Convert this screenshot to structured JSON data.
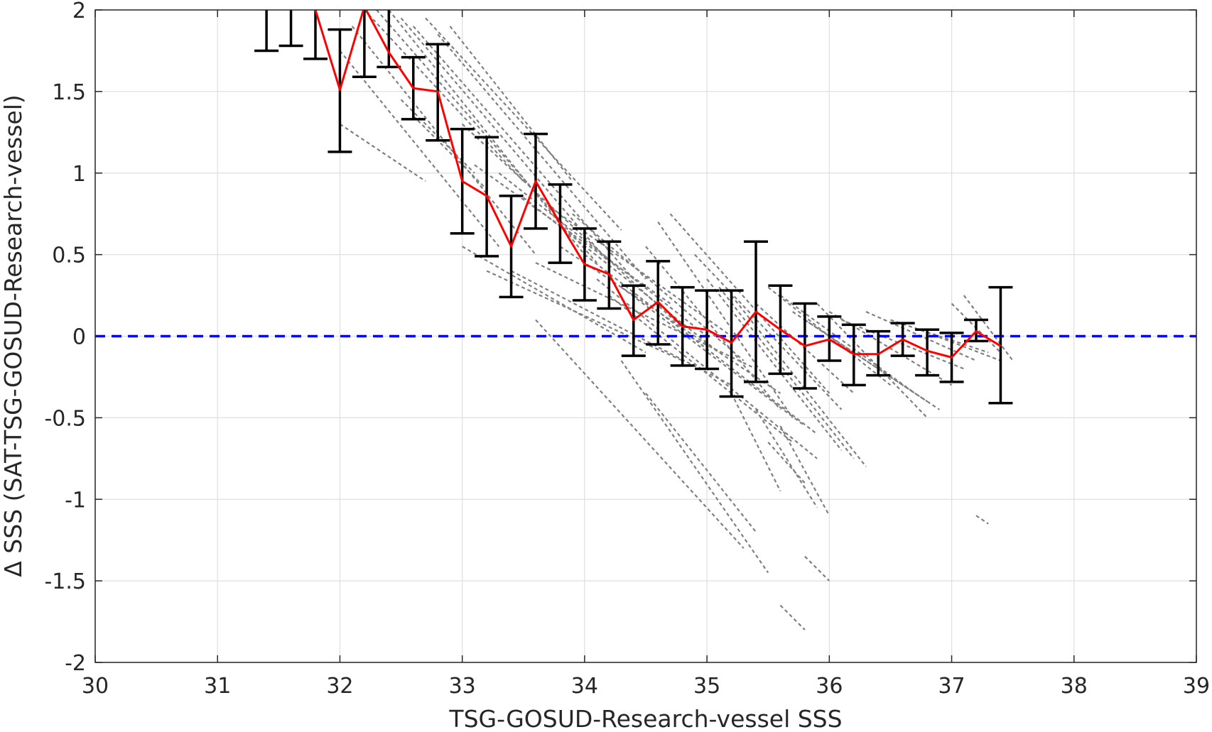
{
  "chart_data": {
    "type": "line",
    "title": "",
    "xlabel": "TSG-GOSUD-Research-vessel SSS",
    "ylabel": "Δ SSS (SAT-TSG-GOSUD-Research-vessel)",
    "xlim": [
      30,
      39
    ],
    "ylim": [
      -2,
      2
    ],
    "x_ticks": [
      30,
      31,
      32,
      33,
      34,
      35,
      36,
      37,
      38,
      39
    ],
    "x_tick_labels": [
      "30",
      "31",
      "32",
      "33",
      "34",
      "35",
      "36",
      "37",
      "38",
      "39"
    ],
    "y_ticks": [
      2,
      1.5,
      1,
      0.5,
      0,
      -0.5,
      -1,
      -1.5,
      -2
    ],
    "y_tick_labels": [
      "2",
      "1.5",
      "1",
      "0.5",
      "0",
      "-0.5",
      "-1",
      "-1.5",
      "-2"
    ],
    "grid": true,
    "zero_line": {
      "y": 0,
      "color": "#0000ff",
      "style": "dashed"
    },
    "mean": {
      "color": "#ff0000",
      "x": [
        31.8,
        32.0,
        32.2,
        32.4,
        32.6,
        32.8,
        33.0,
        33.2,
        33.4,
        33.6,
        33.8,
        34.0,
        34.2,
        34.4,
        34.6,
        34.8,
        35.0,
        35.2,
        35.4,
        35.6,
        35.8,
        36.0,
        36.2,
        36.4,
        36.6,
        36.8,
        37.0,
        37.2,
        37.4
      ],
      "y": [
        2.0,
        1.51,
        2.02,
        1.74,
        1.52,
        1.5,
        0.95,
        0.86,
        0.55,
        0.95,
        0.69,
        0.44,
        0.38,
        0.1,
        0.21,
        0.06,
        0.04,
        -0.04,
        0.15,
        0.04,
        -0.06,
        -0.02,
        -0.11,
        -0.11,
        -0.02,
        -0.09,
        -0.13,
        0.03,
        -0.06
      ]
    },
    "error_bars": {
      "color": "#000000",
      "x": [
        31.4,
        31.6,
        31.8,
        32.0,
        32.2,
        32.4,
        32.6,
        32.8,
        33.0,
        33.2,
        33.4,
        33.6,
        33.8,
        34.0,
        34.2,
        34.4,
        34.6,
        34.8,
        35.0,
        35.2,
        35.4,
        35.6,
        35.8,
        36.0,
        36.2,
        36.4,
        36.6,
        36.8,
        37.0,
        37.2,
        37.4
      ],
      "lower": [
        1.75,
        1.78,
        1.7,
        1.13,
        1.59,
        1.65,
        1.33,
        1.2,
        0.63,
        0.49,
        0.24,
        0.66,
        0.45,
        0.22,
        0.17,
        -0.12,
        -0.05,
        -0.18,
        -0.2,
        -0.37,
        -0.28,
        -0.23,
        -0.32,
        -0.15,
        -0.3,
        -0.24,
        -0.12,
        -0.24,
        -0.28,
        -0.03,
        -0.41
      ],
      "upper": [
        2.0,
        2.0,
        2.0,
        1.88,
        2.0,
        2.0,
        1.71,
        1.79,
        1.27,
        1.22,
        0.86,
        1.24,
        0.93,
        0.66,
        0.58,
        0.31,
        0.46,
        0.3,
        0.28,
        0.28,
        0.58,
        0.31,
        0.2,
        0.12,
        0.07,
        0.03,
        0.08,
        0.04,
        0.02,
        0.1,
        0.3
      ]
    },
    "scatter_segments": {
      "color": "#808080",
      "style": "dashed",
      "description_series": [
        {
          "x": [
            32.0,
            33.3
          ],
          "y": [
            1.75,
            0.55
          ]
        },
        {
          "x": [
            32.1,
            33.6
          ],
          "y": [
            1.9,
            0.5
          ]
        },
        {
          "x": [
            32.2,
            33.5
          ],
          "y": [
            2.0,
            0.95
          ]
        },
        {
          "x": [
            32.3,
            34.1
          ],
          "y": [
            2.0,
            0.45
          ]
        },
        {
          "x": [
            32.4,
            34.0
          ],
          "y": [
            2.0,
            0.5
          ]
        },
        {
          "x": [
            32.5,
            34.2
          ],
          "y": [
            1.95,
            0.45
          ]
        },
        {
          "x": [
            32.6,
            34.4
          ],
          "y": [
            1.9,
            0.35
          ]
        },
        {
          "x": [
            32.7,
            34.3
          ],
          "y": [
            1.95,
            0.65
          ]
        },
        {
          "x": [
            32.8,
            34.5
          ],
          "y": [
            1.85,
            0.35
          ]
        },
        {
          "x": [
            32.9,
            33.9
          ],
          "y": [
            1.9,
            0.95
          ]
        },
        {
          "x": [
            32.5,
            33.1
          ],
          "y": [
            1.45,
            1.0
          ]
        },
        {
          "x": [
            32.6,
            33.2
          ],
          "y": [
            1.35,
            0.9
          ]
        },
        {
          "x": [
            32.0,
            32.7
          ],
          "y": [
            1.3,
            0.95
          ]
        },
        {
          "x": [
            33.0,
            34.8
          ],
          "y": [
            1.3,
            0.05
          ]
        },
        {
          "x": [
            33.1,
            34.7
          ],
          "y": [
            1.05,
            0.2
          ]
        },
        {
          "x": [
            33.3,
            35.0
          ],
          "y": [
            1.0,
            0.0
          ]
        },
        {
          "x": [
            33.5,
            35.1
          ],
          "y": [
            0.85,
            -0.1
          ]
        },
        {
          "x": [
            33.7,
            35.2
          ],
          "y": [
            0.8,
            0.0
          ]
        },
        {
          "x": [
            33.9,
            35.3
          ],
          "y": [
            0.75,
            -0.15
          ]
        },
        {
          "x": [
            33.8,
            35.6
          ],
          "y": [
            0.55,
            -0.35
          ]
        },
        {
          "x": [
            33.6,
            35.4
          ],
          "y": [
            0.45,
            -0.2
          ]
        },
        {
          "x": [
            33.4,
            35.2
          ],
          "y": [
            0.4,
            -0.3
          ]
        },
        {
          "x": [
            33.2,
            34.8
          ],
          "y": [
            0.4,
            -0.15
          ]
        },
        {
          "x": [
            33.0,
            34.5
          ],
          "y": [
            0.55,
            -0.1
          ]
        },
        {
          "x": [
            34.0,
            35.9
          ],
          "y": [
            0.5,
            -0.6
          ]
        },
        {
          "x": [
            34.1,
            35.9
          ],
          "y": [
            0.35,
            -0.75
          ]
        },
        {
          "x": [
            34.2,
            35.7
          ],
          "y": [
            0.25,
            -0.65
          ]
        },
        {
          "x": [
            34.3,
            35.8
          ],
          "y": [
            0.3,
            -0.55
          ]
        },
        {
          "x": [
            34.5,
            35.6
          ],
          "y": [
            0.55,
            -0.45
          ]
        },
        {
          "x": [
            34.6,
            35.7
          ],
          "y": [
            0.7,
            -0.5
          ]
        },
        {
          "x": [
            34.7,
            36.0
          ],
          "y": [
            0.75,
            -0.35
          ]
        },
        {
          "x": [
            34.9,
            36.1
          ],
          "y": [
            0.5,
            -0.45
          ]
        },
        {
          "x": [
            35.0,
            36.1
          ],
          "y": [
            0.35,
            -0.7
          ]
        },
        {
          "x": [
            35.1,
            36.2
          ],
          "y": [
            0.3,
            -0.75
          ]
        },
        {
          "x": [
            35.2,
            36.3
          ],
          "y": [
            0.25,
            -0.8
          ]
        },
        {
          "x": [
            35.4,
            36.2
          ],
          "y": [
            0.2,
            -0.35
          ]
        },
        {
          "x": [
            35.5,
            36.5
          ],
          "y": [
            0.3,
            -0.3
          ]
        },
        {
          "x": [
            35.6,
            36.7
          ],
          "y": [
            0.25,
            -0.35
          ]
        },
        {
          "x": [
            35.7,
            36.8
          ],
          "y": [
            0.15,
            -0.4
          ]
        },
        {
          "x": [
            35.8,
            36.9
          ],
          "y": [
            0.1,
            -0.45
          ]
        },
        {
          "x": [
            35.9,
            36.8
          ],
          "y": [
            0.2,
            -0.5
          ]
        },
        {
          "x": [
            36.0,
            37.0
          ],
          "y": [
            0.15,
            -0.3
          ]
        },
        {
          "x": [
            36.1,
            37.1
          ],
          "y": [
            0.1,
            -0.2
          ]
        },
        {
          "x": [
            36.3,
            37.2
          ],
          "y": [
            0.15,
            -0.15
          ]
        },
        {
          "x": [
            36.5,
            37.3
          ],
          "y": [
            0.1,
            -0.1
          ]
        },
        {
          "x": [
            36.7,
            37.4
          ],
          "y": [
            0.05,
            -0.15
          ]
        },
        {
          "x": [
            37.1,
            37.5
          ],
          "y": [
            0.25,
            -0.15
          ]
        },
        {
          "x": [
            37.0,
            37.4
          ],
          "y": [
            0.2,
            -0.1
          ]
        },
        {
          "x": [
            33.6,
            35.3
          ],
          "y": [
            0.1,
            -1.3
          ]
        },
        {
          "x": [
            34.3,
            35.5
          ],
          "y": [
            -0.15,
            -1.45
          ]
        },
        {
          "x": [
            34.5,
            35.4
          ],
          "y": [
            -0.35,
            -1.2
          ]
        },
        {
          "x": [
            35.2,
            35.6
          ],
          "y": [
            -0.35,
            -0.95
          ]
        },
        {
          "x": [
            35.4,
            35.9
          ],
          "y": [
            -0.45,
            -1.05
          ]
        },
        {
          "x": [
            35.6,
            36.0
          ],
          "y": [
            -0.55,
            -1.1
          ]
        },
        {
          "x": [
            35.5,
            35.8
          ],
          "y": [
            -0.65,
            -0.9
          ]
        },
        {
          "x": [
            35.6,
            35.8
          ],
          "y": [
            -1.65,
            -1.8
          ]
        },
        {
          "x": [
            35.8,
            36.0
          ],
          "y": [
            -1.35,
            -1.5
          ]
        },
        {
          "x": [
            37.2,
            37.3
          ],
          "y": [
            -1.1,
            -1.15
          ]
        }
      ]
    }
  }
}
